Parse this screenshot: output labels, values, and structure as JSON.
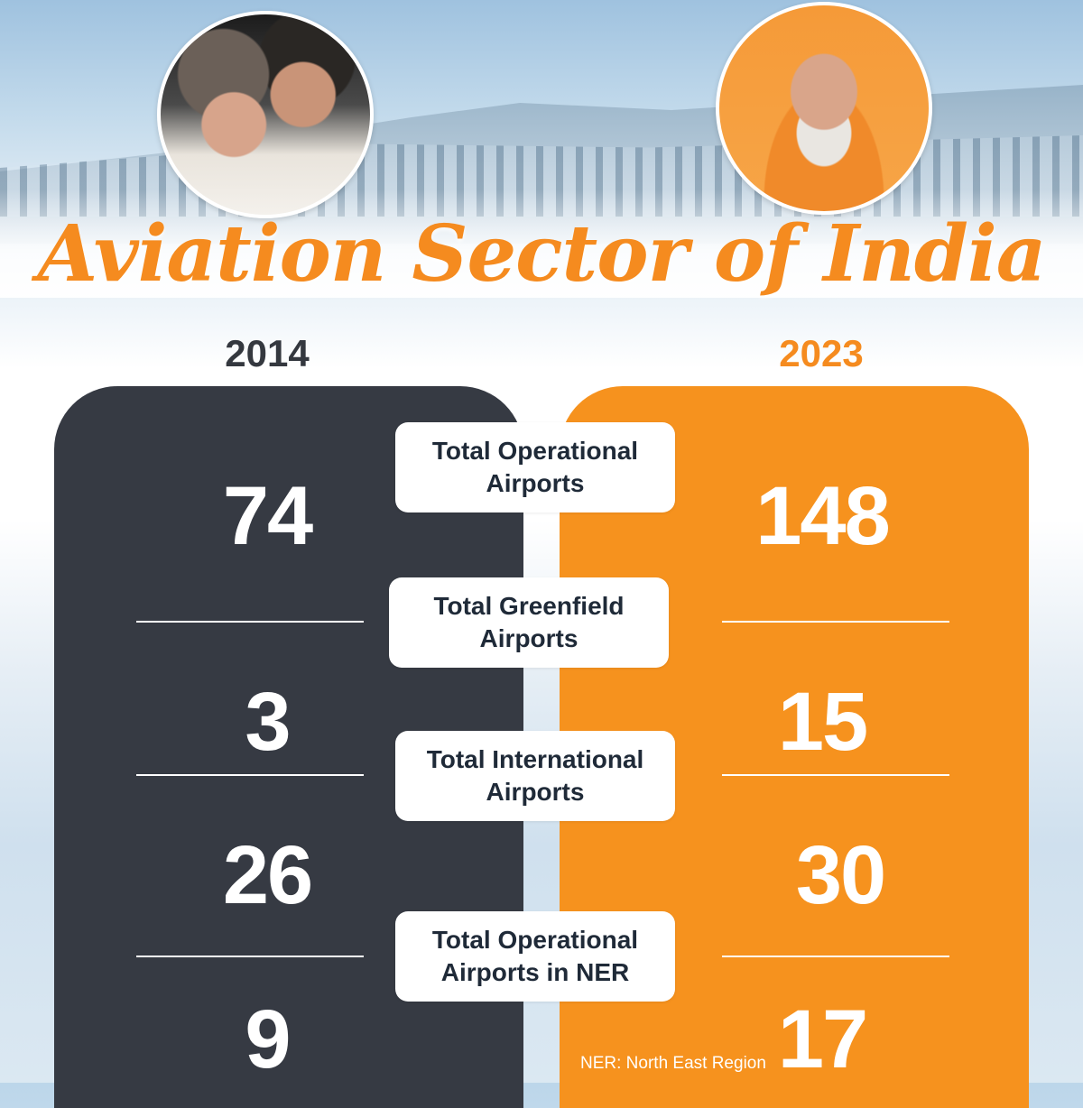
{
  "title": "Aviation Sector of India",
  "years": {
    "left": "2014",
    "right": "2023"
  },
  "metrics": [
    {
      "label": "Total Operational Airports",
      "v2014": "74",
      "v2023": "148"
    },
    {
      "label": "Total Greenfield Airports",
      "v2014": "3",
      "v2023": "15"
    },
    {
      "label": "Total International Airports",
      "v2014": "26",
      "v2023": "30"
    },
    {
      "label": "Total Operational Airports in NER",
      "v2014": "9",
      "v2023": "17"
    }
  ],
  "footnote": "NER: North East Region",
  "colors": {
    "accent": "#f6921e",
    "dark": "#363a43",
    "label_text": "#1f2a38"
  }
}
